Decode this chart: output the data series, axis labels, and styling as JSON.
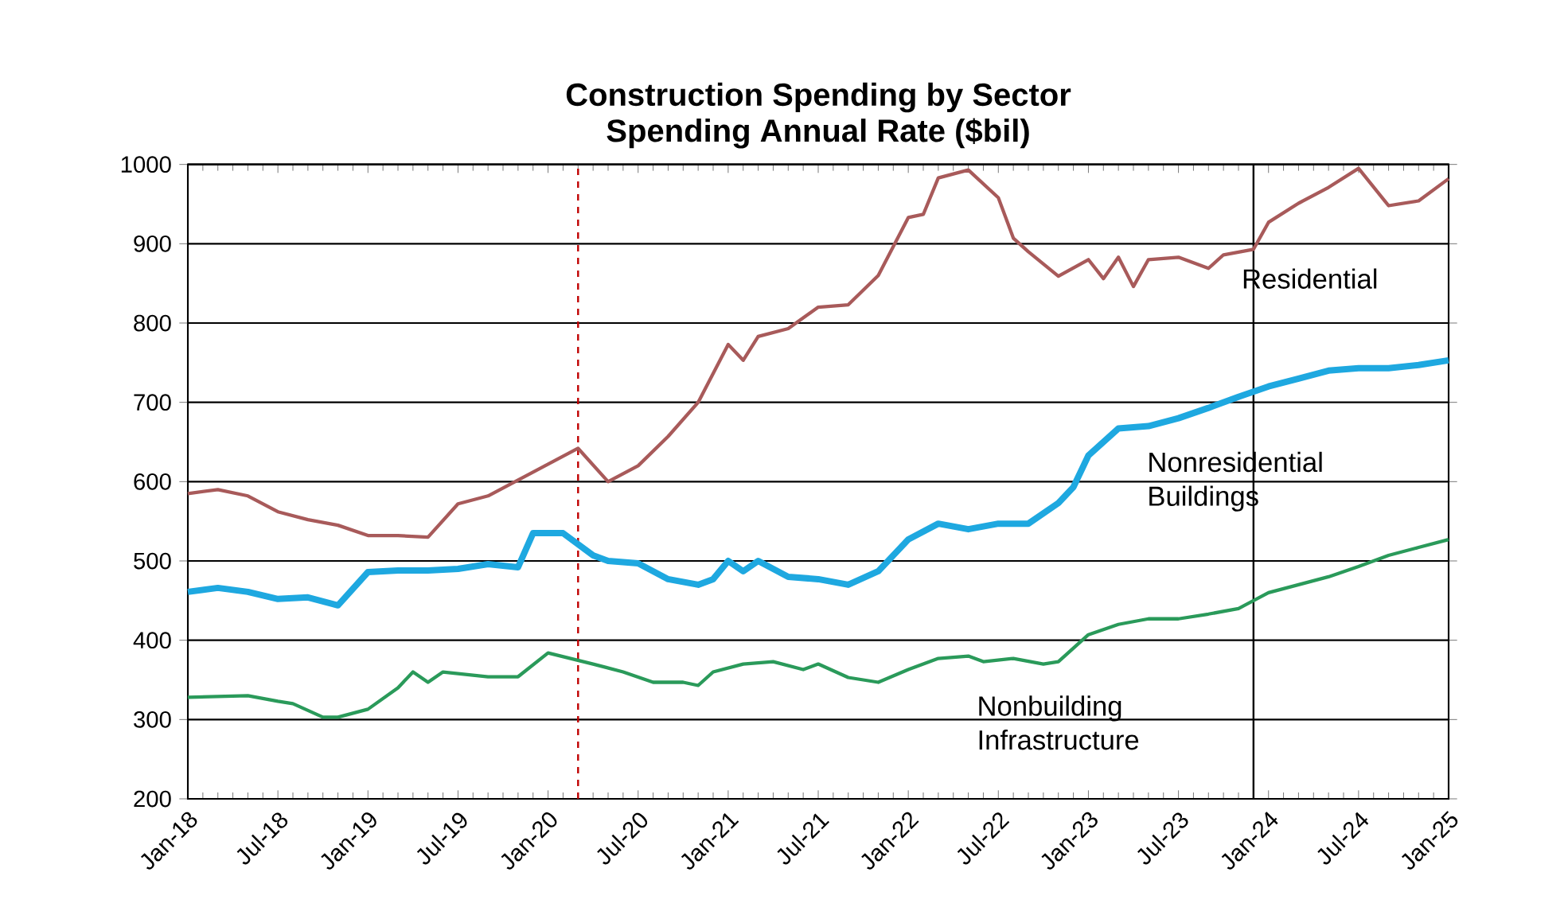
{
  "chart_data": {
    "type": "line",
    "title": "Construction Spending by Sector",
    "subtitle": "Spending Annual Rate ($bil)",
    "ylim": [
      200,
      1000
    ],
    "yticks": [
      200,
      300,
      400,
      500,
      600,
      700,
      800,
      900,
      1000
    ],
    "grid": "y",
    "legend": false,
    "marker": "none",
    "line_style": "solid",
    "xlim": [
      "2018-01",
      "2025-01"
    ],
    "xticks": [
      {
        "value": "2018-01",
        "label": "Jan-18"
      },
      {
        "value": "2018-07",
        "label": "Jul-18"
      },
      {
        "value": "2019-01",
        "label": "Jan-19"
      },
      {
        "value": "2019-07",
        "label": "Jul-19"
      },
      {
        "value": "2020-01",
        "label": "Jan-20"
      },
      {
        "value": "2020-07",
        "label": "Jul-20"
      },
      {
        "value": "2021-01",
        "label": "Jan-21"
      },
      {
        "value": "2021-07",
        "label": "Jul-21"
      },
      {
        "value": "2022-01",
        "label": "Jan-22"
      },
      {
        "value": "2022-07",
        "label": "Jul-22"
      },
      {
        "value": "2023-01",
        "label": "Jan-23"
      },
      {
        "value": "2023-07",
        "label": "Jul-23"
      },
      {
        "value": "2024-01",
        "label": "Jan-24"
      },
      {
        "value": "2024-07",
        "label": "Jul-24"
      },
      {
        "value": "2025-01",
        "label": "Jan-25"
      }
    ],
    "ref_lines": [
      {
        "axis": "x",
        "value": "2020-03",
        "color": "#c00000",
        "line_style": "dashed"
      },
      {
        "axis": "x",
        "value": "2023-12",
        "color": "#000000",
        "line_style": "solid"
      }
    ],
    "series": [
      {
        "name": "Residential",
        "color": "#a85a5a",
        "x": [
          "2018-01",
          "2018-03",
          "2018-05",
          "2018-07",
          "2018-09",
          "2018-11",
          "2019-01",
          "2019-03",
          "2019-05",
          "2019-07",
          "2019-09",
          "2019-11",
          "2020-01",
          "2020-03",
          "2020-05",
          "2020-07",
          "2020-09",
          "2020-11",
          "2021-01",
          "2021-02",
          "2021-03",
          "2021-05",
          "2021-07",
          "2021-09",
          "2021-11",
          "2022-01",
          "2022-02",
          "2022-03",
          "2022-05",
          "2022-07",
          "2022-08",
          "2022-09",
          "2022-11",
          "2023-01",
          "2023-02",
          "2023-03",
          "2023-04",
          "2023-05",
          "2023-07",
          "2023-09",
          "2023-10",
          "2023-12",
          "2024-01",
          "2024-03",
          "2024-05",
          "2024-07",
          "2024-09",
          "2024-11",
          "2025-01"
        ],
        "values": [
          585,
          590,
          582,
          562,
          552,
          545,
          532,
          532,
          530,
          572,
          582,
          602,
          622,
          642,
          600,
          620,
          657,
          700,
          773,
          753,
          783,
          793,
          820,
          823,
          860,
          933,
          937,
          983,
          993,
          958,
          907,
          890,
          859,
          880,
          856,
          883,
          846,
          880,
          883,
          869,
          886,
          893,
          927,
          951,
          971,
          995,
          948,
          954,
          982
        ]
      },
      {
        "name": "Nonresidential Buildings",
        "color": "#1ea8e0",
        "x": [
          "2018-01",
          "2018-03",
          "2018-05",
          "2018-07",
          "2018-09",
          "2018-11",
          "2019-01",
          "2019-03",
          "2019-05",
          "2019-07",
          "2019-09",
          "2019-11",
          "2019-12",
          "2020-02",
          "2020-04",
          "2020-05",
          "2020-07",
          "2020-09",
          "2020-11",
          "2020-12",
          "2021-01",
          "2021-02",
          "2021-03",
          "2021-05",
          "2021-07",
          "2021-09",
          "2021-11",
          "2022-01",
          "2022-03",
          "2022-05",
          "2022-07",
          "2022-09",
          "2022-11",
          "2022-12",
          "2023-01",
          "2023-03",
          "2023-05",
          "2023-07",
          "2023-09",
          "2023-11",
          "2024-01",
          "2024-03",
          "2024-05",
          "2024-07",
          "2024-09",
          "2024-11",
          "2025-01"
        ],
        "values": [
          461,
          466,
          461,
          452,
          454,
          444,
          486,
          488,
          488,
          490,
          496,
          492,
          535,
          535,
          507,
          500,
          497,
          477,
          470,
          477,
          500,
          487,
          500,
          480,
          477,
          470,
          487,
          527,
          547,
          540,
          547,
          547,
          573,
          593,
          633,
          667,
          670,
          680,
          693,
          707,
          720,
          730,
          740,
          743,
          743,
          747,
          753
        ]
      },
      {
        "name": "Nonbuilding Infrastructure",
        "color": "#2a9a5a",
        "x": [
          "2018-01",
          "2018-05",
          "2018-07",
          "2018-08",
          "2018-10",
          "2018-11",
          "2019-01",
          "2019-03",
          "2019-04",
          "2019-05",
          "2019-06",
          "2019-09",
          "2019-11",
          "2020-01",
          "2020-04",
          "2020-06",
          "2020-08",
          "2020-10",
          "2020-11",
          "2020-12",
          "2021-02",
          "2021-04",
          "2021-06",
          "2021-07",
          "2021-09",
          "2021-11",
          "2022-01",
          "2022-03",
          "2022-05",
          "2022-06",
          "2022-08",
          "2022-10",
          "2022-11",
          "2022-12",
          "2023-01",
          "2023-03",
          "2023-05",
          "2023-07",
          "2023-09",
          "2023-11",
          "2024-01",
          "2024-03",
          "2024-05",
          "2024-07",
          "2024-09",
          "2024-11",
          "2025-01"
        ],
        "values": [
          328,
          330,
          323,
          320,
          303,
          303,
          313,
          340,
          360,
          347,
          360,
          354,
          354,
          384,
          370,
          360,
          347,
          347,
          343,
          360,
          370,
          373,
          363,
          370,
          353,
          347,
          363,
          377,
          380,
          373,
          377,
          370,
          373,
          390,
          407,
          420,
          427,
          427,
          433,
          440,
          460,
          470,
          480,
          493,
          507,
          517,
          527
        ]
      }
    ]
  }
}
